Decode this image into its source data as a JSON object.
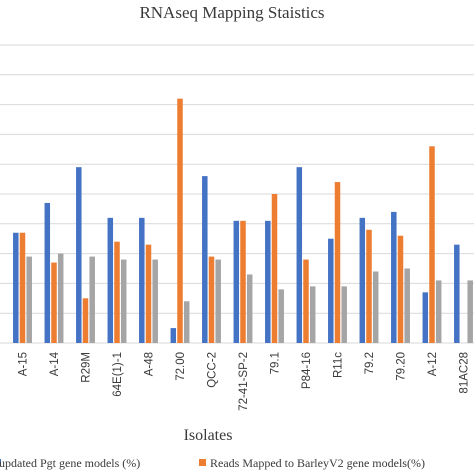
{
  "chart_data": {
    "type": "bar",
    "title": "RNAseq Mapping Staistics",
    "xlabel": "Isolates",
    "ylabel": "",
    "ylim": [
      0,
      100
    ],
    "grid": true,
    "legend_position": "bottom",
    "categories": [
      "A-15",
      "A-14",
      "R29M",
      "64E(1)-1",
      "A-48",
      "72.00",
      "QCC-2",
      "72-41-SP-2",
      "79.1",
      "P84-16",
      "R11c",
      "79.2",
      "79.20",
      "A-12",
      "81AC28"
    ],
    "series": [
      {
        "name": "updated Pgt gene models (%)",
        "color": "#4472c4",
        "values": [
          37,
          47,
          59,
          42,
          42,
          5,
          56,
          41,
          41,
          59,
          35,
          42,
          44,
          17,
          33
        ]
      },
      {
        "name": "Reads Mapped to BarleyV2 gene models(%)",
        "color": "#ed7d31",
        "values": [
          37,
          27,
          15,
          34,
          33,
          82,
          29,
          41,
          50,
          28,
          54,
          38,
          36,
          66,
          null
        ]
      },
      {
        "name": "",
        "color": "#a5a5a5",
        "values": [
          29,
          30,
          29,
          28,
          28,
          14,
          28,
          23,
          18,
          19,
          19,
          24,
          25,
          21,
          21
        ]
      }
    ]
  }
}
